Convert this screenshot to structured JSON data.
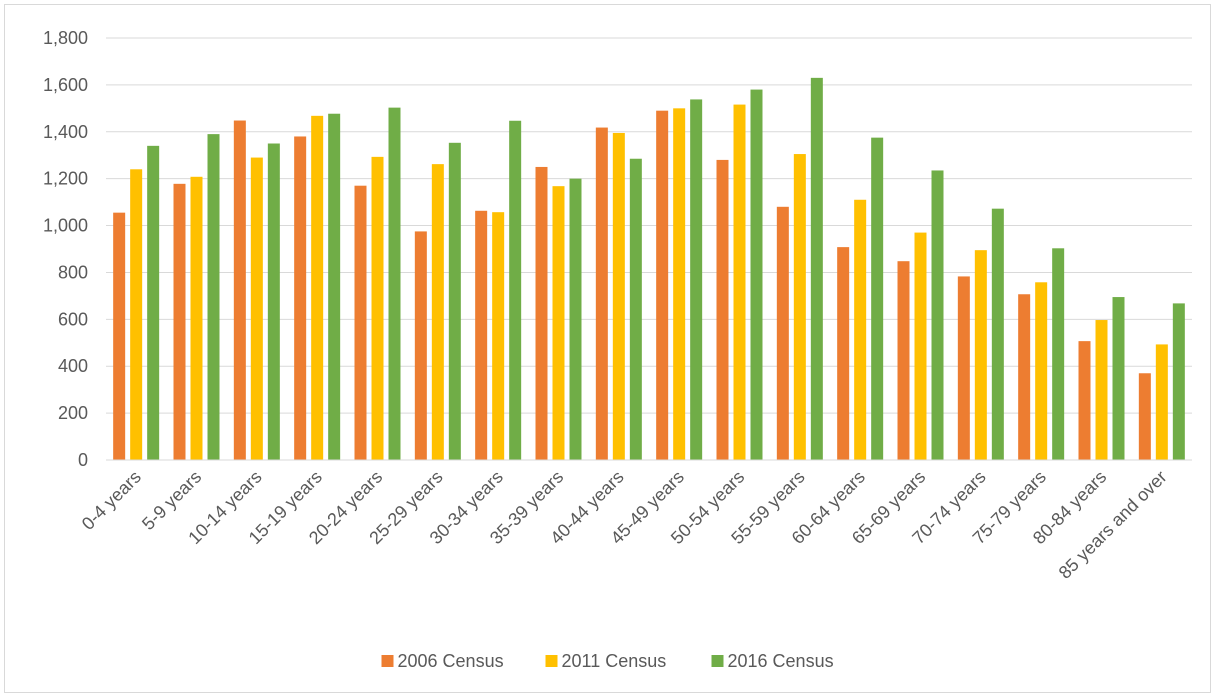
{
  "chart_data": {
    "type": "bar",
    "title": "",
    "xlabel": "",
    "ylabel": "",
    "ylim": [
      0,
      1800
    ],
    "yticks": [
      0,
      200,
      400,
      600,
      800,
      1000,
      1200,
      1400,
      1600,
      1800
    ],
    "ytick_labels": [
      "0",
      "200",
      "400",
      "600",
      "800",
      "1,000",
      "1,200",
      "1,400",
      "1,600",
      "1,800"
    ],
    "grid": true,
    "legend_position": "bottom",
    "categories": [
      "0-4 years",
      "5-9 years",
      "10-14 years",
      "15-19 years",
      "20-24 years",
      "25-29 years",
      "30-34 years",
      "35-39 years",
      "40-44 years",
      "45-49 years",
      "50-54 years",
      "55-59 years",
      "60-64 years",
      "65-69 years",
      "70-74 years",
      "75-79 years",
      "80-84 years",
      "85 years and over"
    ],
    "series": [
      {
        "name": "2006 Census",
        "color": "#ed7d31",
        "values": [
          1055,
          1178,
          1448,
          1380,
          1170,
          975,
          1063,
          1250,
          1418,
          1490,
          1280,
          1080,
          908,
          848,
          783,
          707,
          507,
          370
        ]
      },
      {
        "name": "2011 Census",
        "color": "#ffc000",
        "values": [
          1240,
          1208,
          1290,
          1468,
          1293,
          1262,
          1057,
          1168,
          1395,
          1500,
          1516,
          1305,
          1110,
          970,
          895,
          758,
          597,
          493
        ]
      },
      {
        "name": "2016 Census",
        "color": "#70ad47",
        "values": [
          1340,
          1390,
          1350,
          1477,
          1503,
          1353,
          1447,
          1200,
          1285,
          1538,
          1580,
          1630,
          1375,
          1235,
          1072,
          903,
          695,
          668
        ]
      }
    ]
  }
}
